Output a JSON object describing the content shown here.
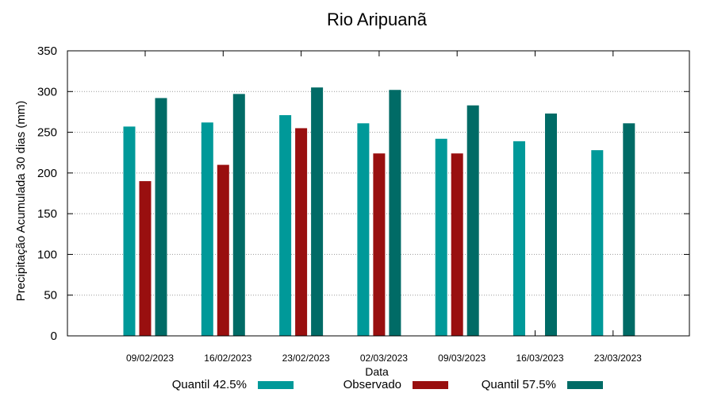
{
  "chart_data": {
    "type": "bar",
    "title": "Rio Aripuanã",
    "xlabel": "Data",
    "ylabel": "Precipitação Acumulada 30 dias (mm)",
    "ylim": [
      0,
      350
    ],
    "yticks": [
      0,
      50,
      100,
      150,
      200,
      250,
      300,
      350
    ],
    "grid": true,
    "legend_position": "bottom",
    "categories": [
      "09/02/2023",
      "16/02/2023",
      "23/02/2023",
      "02/03/2023",
      "09/03/2023",
      "16/03/2023",
      "23/03/2023"
    ],
    "series": [
      {
        "name": "Quantil 42.5%",
        "color": "#009999",
        "values": [
          257,
          262,
          271,
          261,
          242,
          239,
          228
        ]
      },
      {
        "name": "Observado",
        "color": "#990f0f",
        "values": [
          190,
          210,
          255,
          224,
          224,
          null,
          null
        ]
      },
      {
        "name": "Quantil 57.5%",
        "color": "#006b66",
        "values": [
          292,
          297,
          305,
          302,
          283,
          273,
          261
        ]
      }
    ]
  }
}
